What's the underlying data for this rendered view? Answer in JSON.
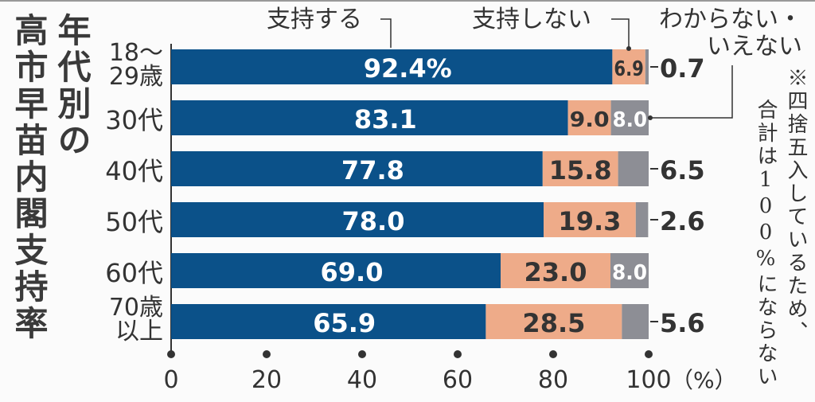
{
  "chart_data": {
    "type": "bar",
    "stacked": true,
    "orientation": "horizontal",
    "title_lines": [
      "年代別の",
      "高市早苗内閣支持率"
    ],
    "categories": [
      [
        "18〜",
        "29歳"
      ],
      [
        "30代"
      ],
      [
        "40代"
      ],
      [
        "50代"
      ],
      [
        "60代"
      ],
      [
        "70歳",
        "以上"
      ]
    ],
    "series": [
      {
        "name": "支持する",
        "color": "#0b5189",
        "values": [
          92.4,
          83.1,
          77.8,
          78.0,
          69.0,
          65.9
        ],
        "labels": [
          "92.4%",
          "83.1",
          "77.8",
          "78.0",
          "69.0",
          "65.9"
        ]
      },
      {
        "name": "支持しない",
        "color": "#eeab89",
        "values": [
          6.9,
          9.0,
          15.8,
          19.3,
          23.0,
          28.5
        ],
        "labels": [
          "6.9",
          "9.0",
          "15.8",
          "19.3",
          "23.0",
          "28.5"
        ]
      },
      {
        "name_lines": [
          "わからない・",
          "いえない"
        ],
        "color": "#8d8e95",
        "values": [
          0.7,
          8.0,
          6.5,
          2.6,
          8.0,
          5.6
        ],
        "labels": [
          "0.7",
          "8.0",
          "6.5",
          "2.6",
          "8.0",
          "5.6"
        ],
        "label_inside": [
          false,
          true,
          false,
          false,
          true,
          false
        ]
      }
    ],
    "xticks": [
      "0",
      "20",
      "40",
      "60",
      "80",
      "100"
    ],
    "xtick_values": [
      0,
      20,
      40,
      60,
      80,
      100
    ],
    "xunit": "（%）",
    "xlim": [
      0,
      100
    ],
    "note_lines": [
      "※四捨五入しているため、",
      "合計は100%にならない"
    ]
  }
}
